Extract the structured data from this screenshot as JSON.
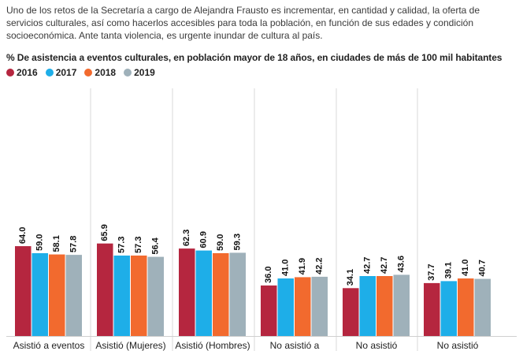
{
  "intro_text": "Uno de los retos de la Secretaría a cargo de Alejandra Frausto es incrementar, en cantidad y calidad, la oferta de servicios culturales, así como hacerlos accesibles para toda la población, en función de sus edades y condición socioeconómica. Ante tanta violencia, es urgente inundar de cultura al país.",
  "chart_data": {
    "type": "bar",
    "title": "% De asistencia a eventos culturales, en población mayor de 18 años, en ciudades de más de 100 mil habitantes",
    "categories": [
      "Asistió a eventos",
      "Asistió (Mujeres)",
      "Asistió (Hombres)",
      "No asistió a",
      "No asistió",
      "No asistió"
    ],
    "series": [
      {
        "name": "2016",
        "color": "#b5263f",
        "values": [
          64.0,
          65.9,
          62.3,
          36.0,
          34.1,
          37.7
        ]
      },
      {
        "name": "2017",
        "color": "#1eaee8",
        "values": [
          59.0,
          57.3,
          60.9,
          41.0,
          42.7,
          39.1
        ]
      },
      {
        "name": "2018",
        "color": "#f26a2e",
        "values": [
          58.1,
          57.3,
          59.0,
          41.9,
          42.7,
          41.0
        ]
      },
      {
        "name": "2019",
        "color": "#9fb1ba",
        "values": [
          57.8,
          56.4,
          59.3,
          42.2,
          43.6,
          40.7
        ]
      }
    ],
    "ylim": [
      0,
      70
    ],
    "grid": false,
    "legend": "top-left"
  }
}
